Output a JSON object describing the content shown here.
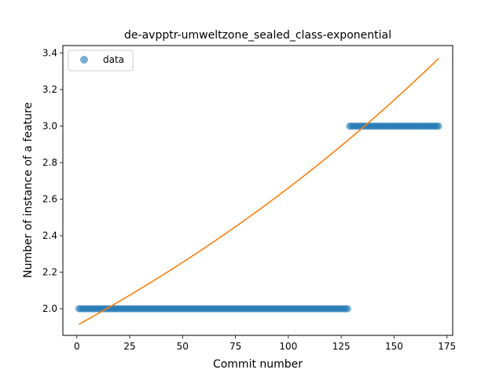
{
  "chart_data": {
    "type": "scatter",
    "title": "de-avpptr-umweltzone_sealed_class-exponential",
    "xlabel": "Commit number",
    "ylabel": "Number of instance of a feature",
    "xlim": [
      -6.6,
      177.7
    ],
    "ylim": [
      1.854,
      3.441
    ],
    "xticks": [
      0,
      25,
      50,
      75,
      100,
      125,
      150,
      175
    ],
    "yticks": [
      2.0,
      2.2,
      2.4,
      2.6,
      2.8,
      3.0,
      3.2,
      3.4
    ],
    "xtick_labels": [
      "0",
      "25",
      "50",
      "75",
      "100",
      "125",
      "150",
      "175"
    ],
    "ytick_labels": [
      "2.0",
      "2.2",
      "2.4",
      "2.6",
      "2.8",
      "3.0",
      "3.2",
      "3.4"
    ],
    "legend": {
      "position": "top-left",
      "entries": [
        "data"
      ]
    },
    "grid": false,
    "series": [
      {
        "name": "data",
        "kind": "scatter",
        "color": "#1f77b4",
        "segments": [
          {
            "x_start": 1,
            "x_end": 128,
            "y": 2.0
          },
          {
            "x_start": 129,
            "x_end": 171,
            "y": 3.0
          }
        ]
      },
      {
        "kind": "line",
        "color": "#ff7f0e",
        "model": "exponential",
        "x_start": 1,
        "x_end": 171,
        "y_start": 1.915,
        "y_end": 3.37
      }
    ]
  }
}
